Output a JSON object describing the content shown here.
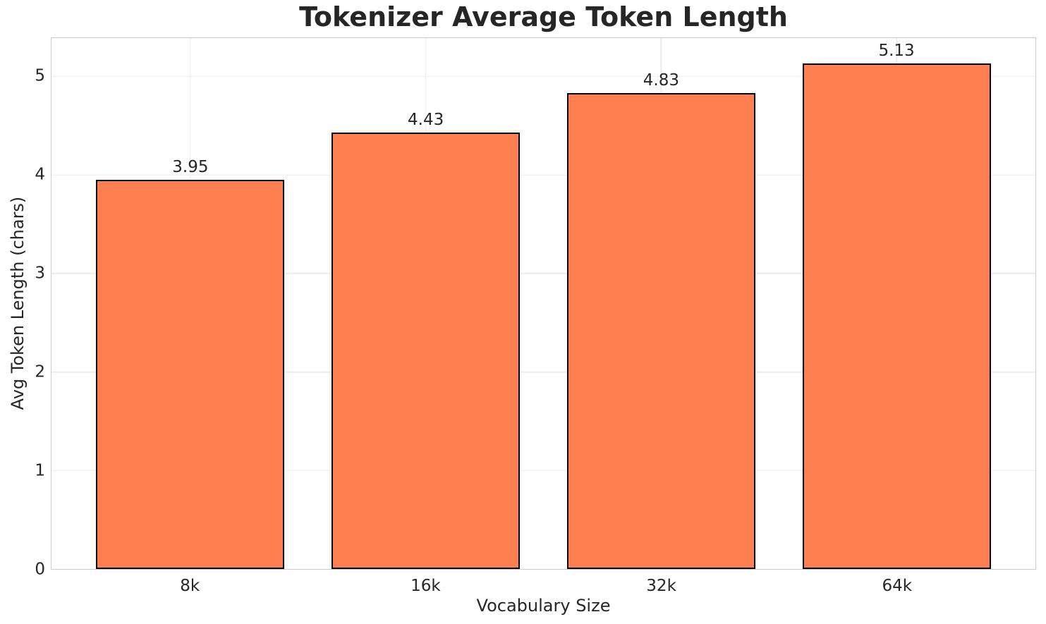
{
  "chart_data": {
    "type": "bar",
    "title": "Tokenizer Average Token Length",
    "xlabel": "Vocabulary Size",
    "ylabel": "Avg Token Length (chars)",
    "categories": [
      "8k",
      "16k",
      "32k",
      "64k"
    ],
    "values": [
      3.95,
      4.43,
      4.83,
      5.13
    ],
    "value_labels": [
      "3.95",
      "4.43",
      "4.83",
      "5.13"
    ],
    "yticks": [
      0,
      1,
      2,
      3,
      4,
      5
    ],
    "ytick_labels": [
      "0",
      "1",
      "2",
      "3",
      "4",
      "5"
    ],
    "ylim": [
      0,
      5.39
    ],
    "xlim": [
      -0.59,
      3.59
    ],
    "bar_width_units": 0.8,
    "grid": "on",
    "legend": "none",
    "colors": {
      "bar_fill": "#FF7F50",
      "bar_edge": "#000000",
      "grid": "#ececec",
      "spine": "#cccccc",
      "text": "#262626",
      "background": "#ffffff"
    }
  }
}
